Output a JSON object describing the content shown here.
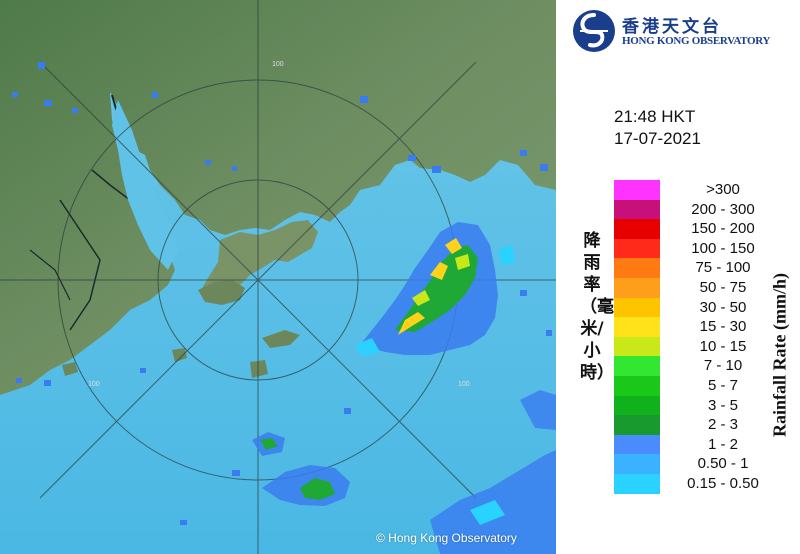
{
  "logo": {
    "name_cn": "香港天文台",
    "name_en": "HONG KONG OBSERVATORY",
    "brand_color": "#1a3e8c"
  },
  "timestamp": {
    "time": "21:48 HKT",
    "date": "17-07-2021"
  },
  "legend": {
    "title_cn": "降雨率（毫米/小時）",
    "title_en": "Rainfall Rate (mm/h)",
    "entries": [
      {
        "label": ">300",
        "color": "#ff33ff"
      },
      {
        "label": "200 - 300",
        "color": "#c8107a"
      },
      {
        "label": "150 - 200",
        "color": "#e80000"
      },
      {
        "label": "100 - 150",
        "color": "#ff2a1a"
      },
      {
        "label": "75 - 100",
        "color": "#ff7a10"
      },
      {
        "label": "50 - 75",
        "color": "#ff9e1a"
      },
      {
        "label": "30 - 50",
        "color": "#ffc400"
      },
      {
        "label": "15 - 30",
        "color": "#ffe21a"
      },
      {
        "label": "10 - 15",
        "color": "#c8e81a"
      },
      {
        "label": "7 - 10",
        "color": "#32e632"
      },
      {
        "label": "5 - 7",
        "color": "#1ac81a"
      },
      {
        "label": "3 - 5",
        "color": "#10b21c"
      },
      {
        "label": "2 - 3",
        "color": "#189a2e"
      },
      {
        "label": "1 - 2",
        "color": "#4a8cff"
      },
      {
        "label": "0.50 - 1",
        "color": "#3ab2ff"
      },
      {
        "label": "0.15 - 0.50",
        "color": "#2ad2ff"
      }
    ]
  },
  "map": {
    "range_ring_labels": [
      "100",
      "100",
      "100"
    ],
    "copyright": "© Hong Kong Observatory"
  }
}
